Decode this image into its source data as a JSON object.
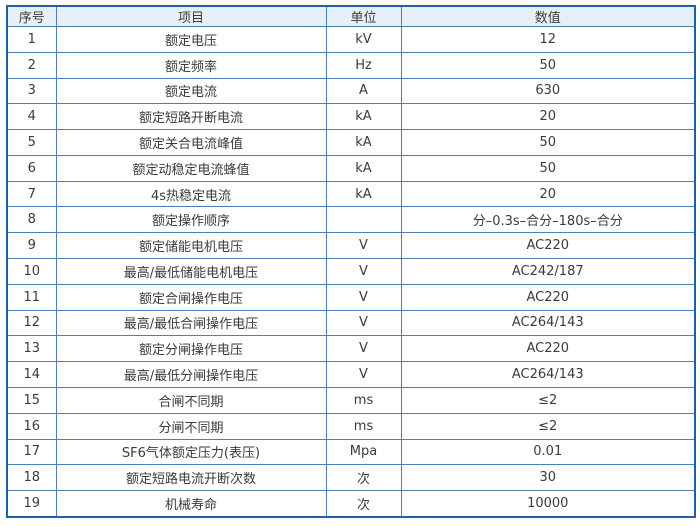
{
  "table": {
    "columns": [
      {
        "key": "no",
        "label": "序号"
      },
      {
        "key": "item",
        "label": "项目"
      },
      {
        "key": "unit",
        "label": "单位"
      },
      {
        "key": "value",
        "label": "数值"
      }
    ],
    "rows": [
      {
        "no": "1",
        "item": "额定电压",
        "unit": "kV",
        "value": "12"
      },
      {
        "no": "2",
        "item": "额定频率",
        "unit": "Hz",
        "value": "50"
      },
      {
        "no": "3",
        "item": "额定电流",
        "unit": "A",
        "value": "630"
      },
      {
        "no": "4",
        "item": "额定短路开断电流",
        "unit": "kA",
        "value": "20"
      },
      {
        "no": "5",
        "item": "额定关合电流峰值",
        "unit": "kA",
        "value": "50"
      },
      {
        "no": "6",
        "item": "额定动稳定电流蜂值",
        "unit": "kA",
        "value": "50"
      },
      {
        "no": "7",
        "item": "4s热稳定电流",
        "unit": "kA",
        "value": "20"
      },
      {
        "no": "8",
        "item": "额定操作顺序",
        "unit": "",
        "value": "分–0.3s–合分–180s–合分"
      },
      {
        "no": "9",
        "item": "额定储能电机电压",
        "unit": "V",
        "value": "AC220"
      },
      {
        "no": "10",
        "item": "最高/最低储能电机电压",
        "unit": "V",
        "value": "AC242/187"
      },
      {
        "no": "11",
        "item": "额定合闸操作电压",
        "unit": "V",
        "value": "AC220"
      },
      {
        "no": "12",
        "item": "最高/最低合闸操作电压",
        "unit": "V",
        "value": "AC264/143"
      },
      {
        "no": "13",
        "item": "额定分闸操作电压",
        "unit": "V",
        "value": "AC220"
      },
      {
        "no": "14",
        "item": "最高/最低分闸操作电压",
        "unit": "V",
        "value": "AC264/143"
      },
      {
        "no": "15",
        "item": "合闸不同期",
        "unit": "ms",
        "value": "≤2"
      },
      {
        "no": "16",
        "item": "分闸不同期",
        "unit": "ms",
        "value": "≤2"
      },
      {
        "no": "17",
        "item": "SF6气体额定压力(表压)",
        "unit": "Mpa",
        "value": "0.01"
      },
      {
        "no": "18",
        "item": "额定短路电流开断次数",
        "unit": "次",
        "value": "30"
      },
      {
        "no": "19",
        "item": "机械寿命",
        "unit": "次",
        "value": "10000"
      }
    ]
  },
  "colors": {
    "border_outer": "#1e5fa9",
    "border_inner": "#4a81bd",
    "header_bg": "#e6eff7",
    "row_bg": "#ffffff",
    "text": "#3b3b3b",
    "page_bg": "#ffffff"
  }
}
